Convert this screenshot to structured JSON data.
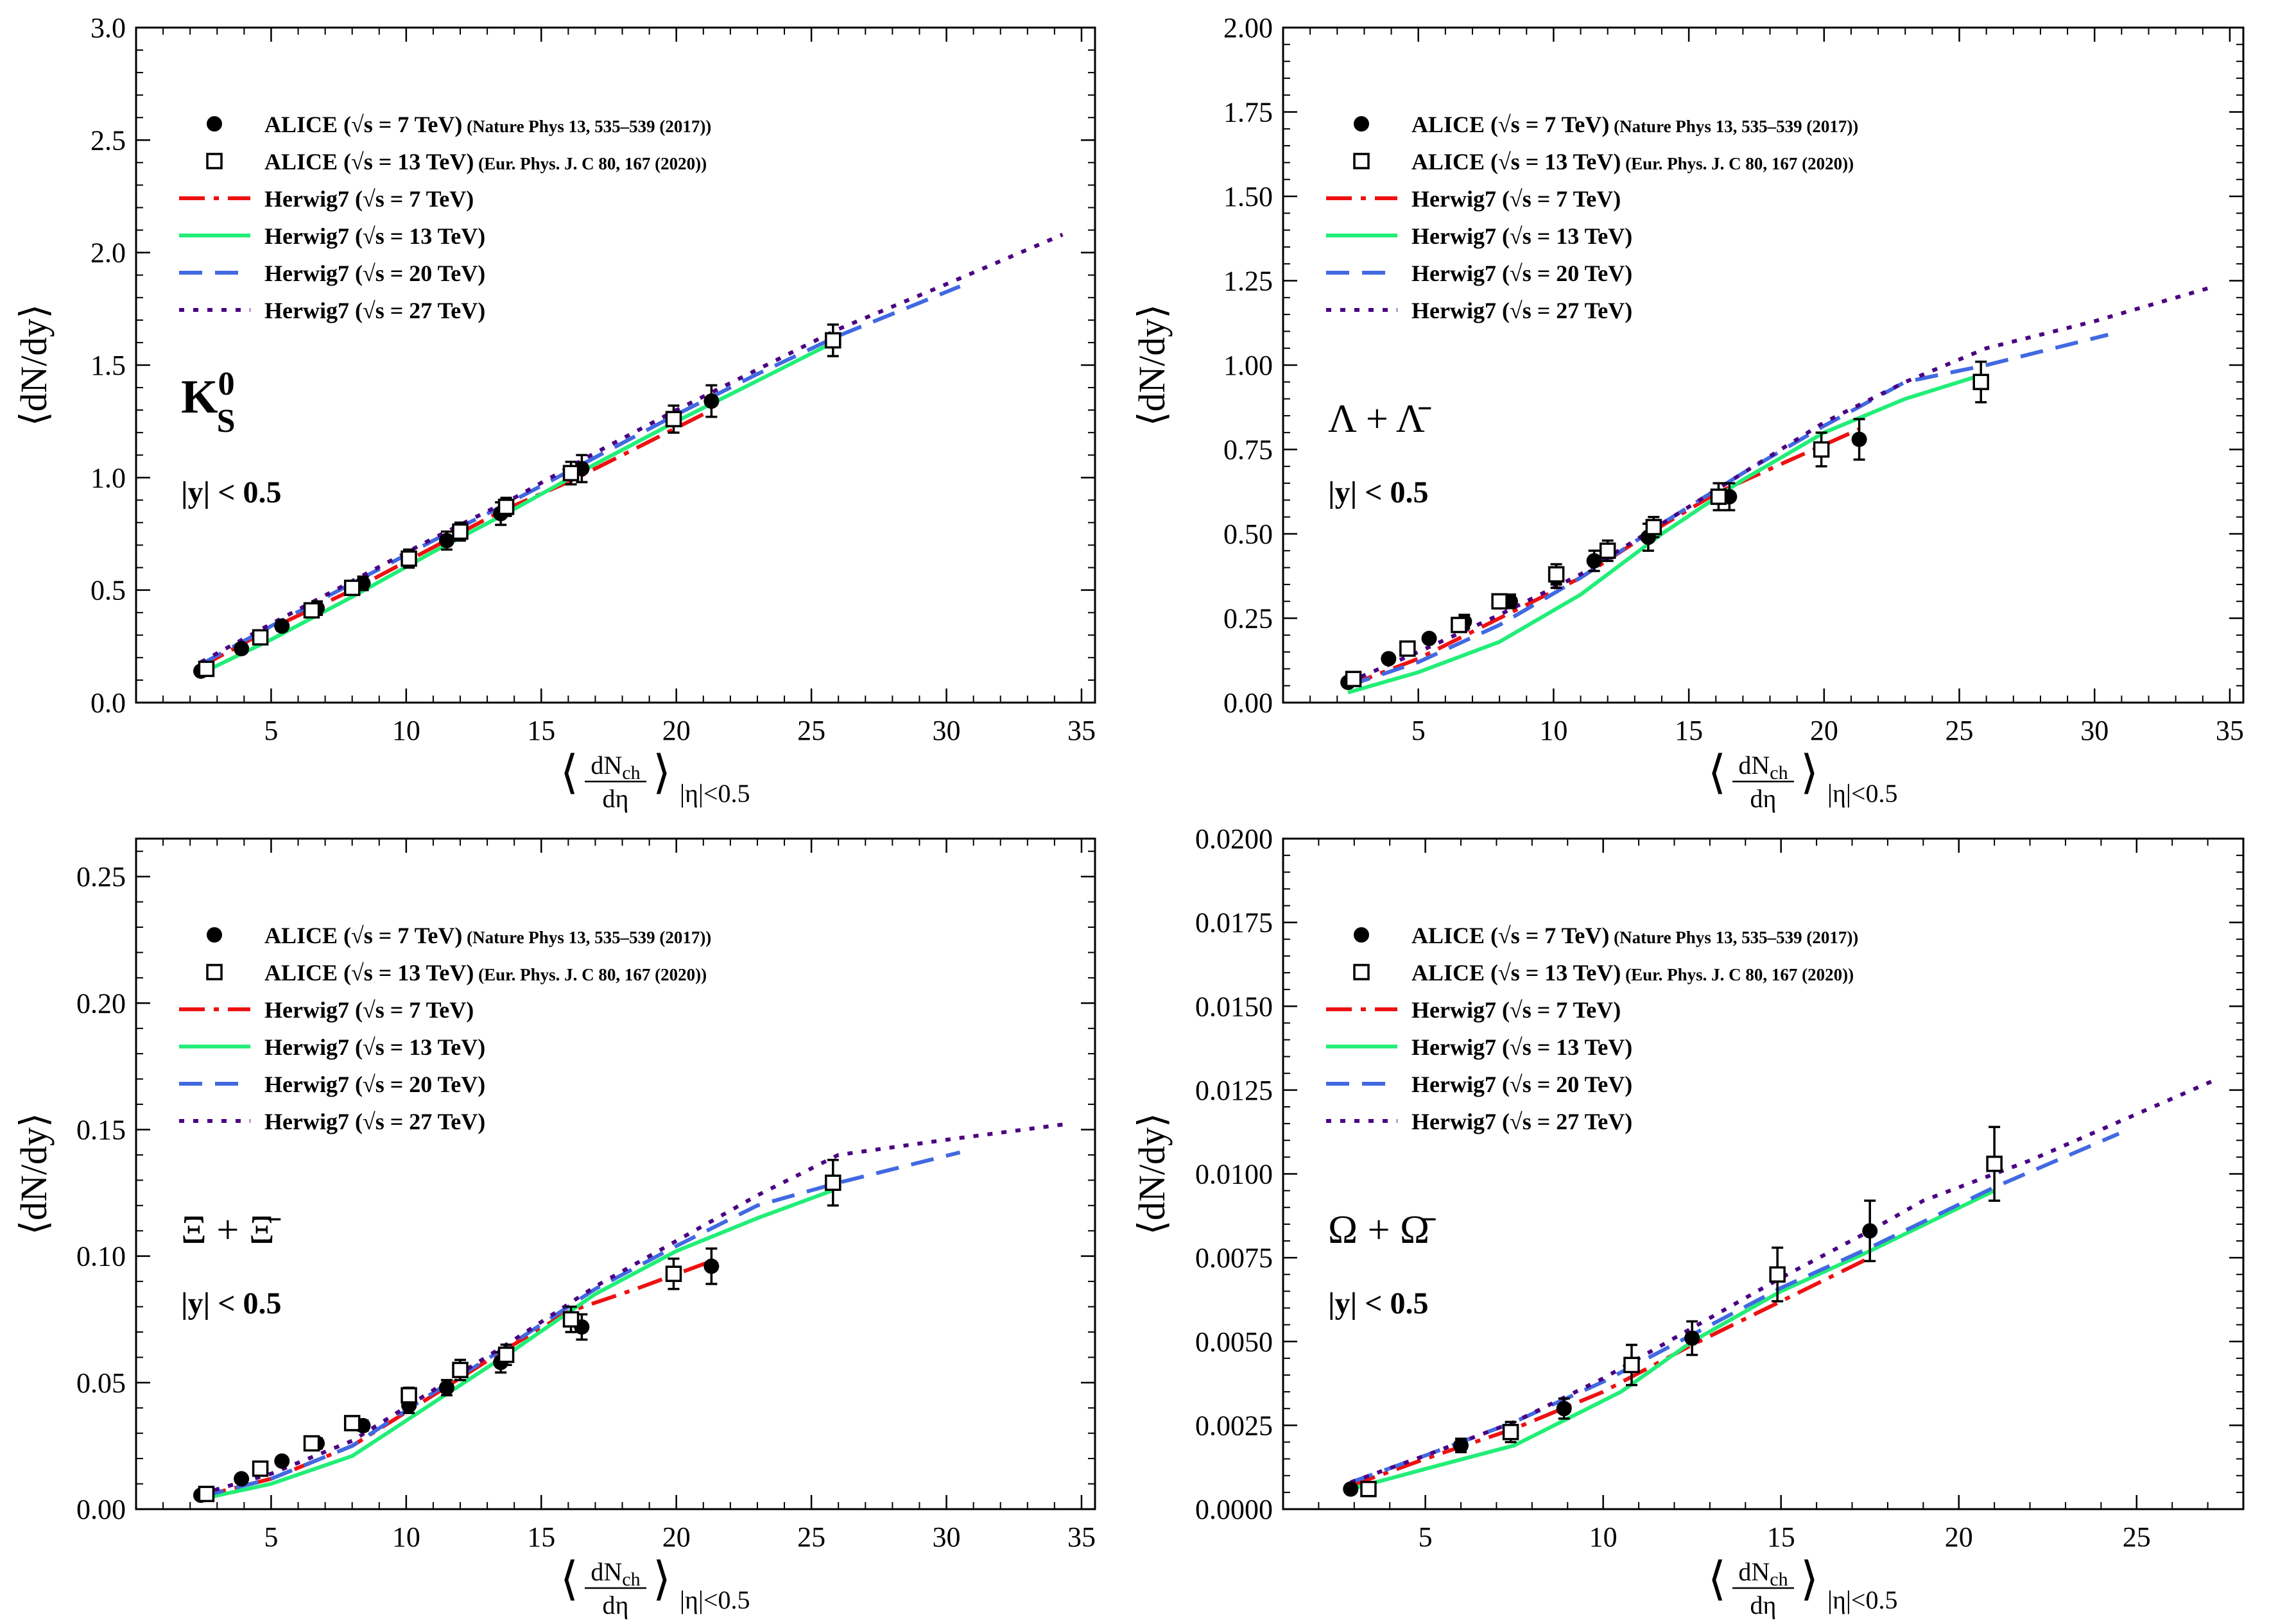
{
  "figure": {
    "xlabel_prefix": "⟨",
    "xlabel_frac_num": "dN",
    "xlabel_frac_num_sub": "ch",
    "xlabel_frac_den": "dη",
    "xlabel_suffix": "⟩",
    "xlabel_sub": "|η|<0.5",
    "ylabel": "⟨dN/dy⟩"
  },
  "legend": {
    "alice7": {
      "label": "ALICE (√s = 7 TeV)",
      "ref": "(Nature Phys 13, 535–539 (2017))"
    },
    "alice13": {
      "label": "ALICE (√s = 13 TeV)",
      "ref": "(Eur. Phys. J. C 80, 167 (2020))"
    },
    "herwig7": {
      "label": "Herwig7 (√s = 7 TeV)"
    },
    "herwig13": {
      "label": "Herwig7 (√s = 13 TeV)"
    },
    "herwig20": {
      "label": "Herwig7 (√s = 20 TeV)"
    },
    "herwig27": {
      "label": "Herwig7 (√s = 27 TeV)"
    }
  },
  "colors": {
    "alice7": "#000000",
    "alice13": "#000000",
    "herwig7": "#ee1111",
    "herwig13": "#22ee77",
    "herwig20": "#4169e1",
    "herwig27": "#4b0082"
  },
  "chart_data": [
    {
      "type": "line",
      "panel": "top-left",
      "particle": "K_S^0",
      "particle_main": "K",
      "particle_sup": "0",
      "particle_sub": "S",
      "cut": "|y| < 0.5",
      "xlim": [
        0,
        35.5
      ],
      "ylim": [
        0,
        3.0
      ],
      "xticks": [
        5,
        10,
        15,
        20,
        25,
        30,
        35
      ],
      "yticks": [
        0,
        0.5,
        1.0,
        1.5,
        2.0,
        2.5,
        3.0
      ],
      "ytick_labels": [
        "0.0",
        "0.5",
        "1.0",
        "1.5",
        "2.0",
        "2.5",
        "3.0"
      ],
      "series": [
        {
          "name": "ALICE 7 TeV",
          "kind": "points-filled",
          "x": [
            2.4,
            3.9,
            5.4,
            6.7,
            8.4,
            10.1,
            11.5,
            13.5,
            16.5,
            21.3
          ],
          "y": [
            0.14,
            0.24,
            0.34,
            0.42,
            0.53,
            0.64,
            0.72,
            0.84,
            1.04,
            1.34
          ],
          "err": [
            0.01,
            0.02,
            0.02,
            0.03,
            0.03,
            0.04,
            0.04,
            0.05,
            0.06,
            0.07
          ]
        },
        {
          "name": "ALICE 13 TeV",
          "kind": "points-open",
          "x": [
            2.6,
            4.6,
            6.5,
            8.0,
            10.1,
            12.0,
            13.7,
            16.1,
            19.9,
            25.8
          ],
          "y": [
            0.15,
            0.29,
            0.41,
            0.51,
            0.64,
            0.76,
            0.87,
            1.02,
            1.26,
            1.61
          ],
          "err": [
            0.01,
            0.02,
            0.02,
            0.03,
            0.03,
            0.04,
            0.04,
            0.05,
            0.06,
            0.07
          ]
        },
        {
          "name": "Herwig7 7 TeV",
          "kind": "dashdot",
          "x": [
            2.4,
            5.0,
            8.0,
            11.0,
            13.5,
            16.0,
            18.5,
            21.3
          ],
          "y": [
            0.16,
            0.33,
            0.5,
            0.69,
            0.85,
            0.98,
            1.13,
            1.3
          ]
        },
        {
          "name": "Herwig7 13 TeV",
          "kind": "solid",
          "x": [
            2.4,
            5.0,
            8.0,
            11.0,
            14.0,
            17.0,
            20.0,
            23.0,
            25.8
          ],
          "y": [
            0.13,
            0.28,
            0.47,
            0.67,
            0.86,
            1.06,
            1.25,
            1.43,
            1.6
          ]
        },
        {
          "name": "Herwig7 20 TeV",
          "kind": "dashed",
          "x": [
            2.4,
            5.0,
            8.0,
            11.0,
            14.0,
            17.0,
            20.0,
            23.0,
            26.0,
            30.5
          ],
          "y": [
            0.17,
            0.34,
            0.53,
            0.72,
            0.9,
            1.09,
            1.28,
            1.46,
            1.63,
            1.85
          ]
        },
        {
          "name": "Herwig7 27 TeV",
          "kind": "dotted",
          "x": [
            2.4,
            5.0,
            8.0,
            11.0,
            14.0,
            17.0,
            20.0,
            23.0,
            26.0,
            30.0,
            34.3
          ],
          "y": [
            0.18,
            0.35,
            0.54,
            0.73,
            0.91,
            1.11,
            1.3,
            1.48,
            1.66,
            1.86,
            2.08
          ]
        }
      ]
    },
    {
      "type": "line",
      "panel": "top-right",
      "particle": "Λ + Λ̄",
      "particle_main": "Λ + Λ̄",
      "particle_sup": "",
      "particle_sub": "",
      "cut": "|y| < 0.5",
      "xlim": [
        0,
        35.5
      ],
      "ylim": [
        0,
        2.0
      ],
      "xticks": [
        5,
        10,
        15,
        20,
        25,
        30,
        35
      ],
      "yticks": [
        0,
        0.25,
        0.5,
        0.75,
        1.0,
        1.25,
        1.5,
        1.75,
        2.0
      ],
      "ytick_labels": [
        "0.00",
        "0.25",
        "0.50",
        "0.75",
        "1.00",
        "1.25",
        "1.50",
        "1.75",
        "2.00"
      ],
      "series": [
        {
          "name": "ALICE 7 TeV",
          "kind": "points-filled",
          "x": [
            2.4,
            3.9,
            5.4,
            6.7,
            8.4,
            10.1,
            11.5,
            13.5,
            16.5,
            21.3
          ],
          "y": [
            0.06,
            0.13,
            0.19,
            0.24,
            0.3,
            0.37,
            0.42,
            0.49,
            0.61,
            0.78
          ],
          "err": [
            0.01,
            0.01,
            0.01,
            0.02,
            0.02,
            0.03,
            0.03,
            0.04,
            0.04,
            0.06
          ]
        },
        {
          "name": "ALICE 13 TeV",
          "kind": "points-open",
          "x": [
            2.6,
            4.6,
            6.5,
            8.0,
            10.1,
            12.0,
            13.7,
            16.1,
            19.9,
            25.8
          ],
          "y": [
            0.07,
            0.16,
            0.23,
            0.3,
            0.38,
            0.45,
            0.52,
            0.61,
            0.75,
            0.95
          ],
          "err": [
            0.01,
            0.01,
            0.02,
            0.02,
            0.03,
            0.03,
            0.03,
            0.04,
            0.05,
            0.06
          ]
        },
        {
          "name": "Herwig7 7 TeV",
          "kind": "dashdot",
          "x": [
            2.4,
            5.0,
            8.0,
            11.0,
            13.5,
            16.0,
            18.5,
            21.3
          ],
          "y": [
            0.05,
            0.13,
            0.25,
            0.37,
            0.5,
            0.62,
            0.71,
            0.81
          ]
        },
        {
          "name": "Herwig7 13 TeV",
          "kind": "solid",
          "x": [
            2.4,
            5.0,
            8.0,
            11.0,
            14.0,
            17.0,
            20.0,
            23.0,
            25.8
          ],
          "y": [
            0.03,
            0.09,
            0.18,
            0.32,
            0.5,
            0.66,
            0.8,
            0.9,
            0.97
          ]
        },
        {
          "name": "Herwig7 20 TeV",
          "kind": "dashed",
          "x": [
            2.4,
            5.0,
            8.0,
            11.0,
            14.0,
            17.0,
            20.0,
            23.0,
            26.0,
            30.5
          ],
          "y": [
            0.05,
            0.12,
            0.23,
            0.37,
            0.53,
            0.68,
            0.82,
            0.95,
            1.0,
            1.09
          ]
        },
        {
          "name": "Herwig7 27 TeV",
          "kind": "dotted",
          "x": [
            2.4,
            5.0,
            8.0,
            11.0,
            14.0,
            17.0,
            20.0,
            23.0,
            26.0,
            30.0,
            34.3
          ],
          "y": [
            0.06,
            0.15,
            0.26,
            0.38,
            0.53,
            0.68,
            0.83,
            0.95,
            1.05,
            1.13,
            1.23
          ]
        }
      ]
    },
    {
      "type": "line",
      "panel": "bottom-left",
      "particle": "Ξ + Ξ̄",
      "particle_main": "Ξ + Ξ̄",
      "particle_sup": "",
      "particle_sub": "",
      "cut": "|y| < 0.5",
      "xlim": [
        0,
        35.5
      ],
      "ylim": [
        0,
        0.265
      ],
      "xticks": [
        5,
        10,
        15,
        20,
        25,
        30,
        35
      ],
      "yticks": [
        0,
        0.05,
        0.1,
        0.15,
        0.2,
        0.25
      ],
      "ytick_labels": [
        "0.00",
        "0.05",
        "0.10",
        "0.15",
        "0.20",
        "0.25"
      ],
      "series": [
        {
          "name": "ALICE 7 TeV",
          "kind": "points-filled",
          "x": [
            2.4,
            3.9,
            5.4,
            6.7,
            8.4,
            10.1,
            11.5,
            13.5,
            16.5,
            21.3
          ],
          "y": [
            0.0055,
            0.012,
            0.019,
            0.026,
            0.033,
            0.041,
            0.048,
            0.058,
            0.072,
            0.096
          ],
          "err": [
            0.0005,
            0.001,
            0.0015,
            0.002,
            0.002,
            0.003,
            0.003,
            0.004,
            0.005,
            0.007
          ]
        },
        {
          "name": "ALICE 13 TeV",
          "kind": "points-open",
          "x": [
            2.6,
            4.6,
            6.5,
            8.0,
            10.1,
            12.0,
            13.7,
            16.1,
            19.9,
            25.8
          ],
          "y": [
            0.006,
            0.016,
            0.026,
            0.034,
            0.045,
            0.055,
            0.061,
            0.075,
            0.093,
            0.129
          ],
          "err": [
            0.0005,
            0.001,
            0.002,
            0.002,
            0.003,
            0.004,
            0.004,
            0.005,
            0.006,
            0.009
          ]
        },
        {
          "name": "Herwig7 7 TeV",
          "kind": "dashdot",
          "x": [
            2.4,
            5.0,
            8.0,
            11.0,
            13.5,
            16.0,
            18.5,
            21.3
          ],
          "y": [
            0.005,
            0.012,
            0.025,
            0.045,
            0.062,
            0.078,
            0.087,
            0.098
          ]
        },
        {
          "name": "Herwig7 13 TeV",
          "kind": "solid",
          "x": [
            2.4,
            5.0,
            8.0,
            11.0,
            14.0,
            17.0,
            20.0,
            23.0,
            25.8
          ],
          "y": [
            0.004,
            0.01,
            0.021,
            0.042,
            0.063,
            0.085,
            0.102,
            0.115,
            0.126
          ]
        },
        {
          "name": "Herwig7 20 TeV",
          "kind": "dashed",
          "x": [
            2.4,
            5.0,
            8.0,
            11.0,
            14.0,
            17.0,
            20.0,
            23.0,
            26.0,
            30.5
          ],
          "y": [
            0.005,
            0.012,
            0.025,
            0.046,
            0.066,
            0.087,
            0.104,
            0.12,
            0.129,
            0.141
          ]
        },
        {
          "name": "Herwig7 27 TeV",
          "kind": "dotted",
          "x": [
            2.4,
            5.0,
            8.0,
            11.0,
            14.0,
            17.0,
            20.0,
            23.0,
            26.0,
            30.0,
            34.3
          ],
          "y": [
            0.006,
            0.014,
            0.027,
            0.047,
            0.067,
            0.088,
            0.106,
            0.124,
            0.14,
            0.146,
            0.152
          ]
        }
      ]
    },
    {
      "type": "line",
      "panel": "bottom-right",
      "particle": "Ω + Ω̄",
      "particle_main": "Ω + Ω̄",
      "particle_sup": "",
      "particle_sub": "",
      "cut": "|y| < 0.5",
      "xlim": [
        1.0,
        28.0
      ],
      "ylim": [
        0,
        0.02
      ],
      "xticks": [
        5,
        10,
        15,
        20,
        25
      ],
      "yticks": [
        0,
        0.0025,
        0.005,
        0.0075,
        0.01,
        0.0125,
        0.015,
        0.0175,
        0.02
      ],
      "ytick_labels": [
        "0.0000",
        "0.0025",
        "0.0050",
        "0.0075",
        "0.0100",
        "0.0125",
        "0.0150",
        "0.0175",
        "0.0200"
      ],
      "series": [
        {
          "name": "ALICE 7 TeV",
          "kind": "points-filled",
          "x": [
            2.9,
            6.0,
            8.9,
            12.5,
            17.5
          ],
          "y": [
            0.0006,
            0.0019,
            0.003,
            0.0051,
            0.0083
          ],
          "err": [
            0.0001,
            0.0002,
            0.0003,
            0.0005,
            0.0009
          ]
        },
        {
          "name": "ALICE 13 TeV",
          "kind": "points-open",
          "x": [
            3.4,
            7.4,
            10.8,
            14.9,
            21.0
          ],
          "y": [
            0.0006,
            0.0023,
            0.0043,
            0.007,
            0.0103
          ],
          "err": [
            0.0001,
            0.0003,
            0.0006,
            0.0008,
            0.0011
          ]
        },
        {
          "name": "Herwig7 7 TeV",
          "kind": "dashdot",
          "x": [
            2.9,
            5.0,
            7.5,
            10.0,
            12.5,
            15.0,
            17.5
          ],
          "y": [
            0.0007,
            0.0015,
            0.0024,
            0.0035,
            0.0049,
            0.0062,
            0.0075
          ]
        },
        {
          "name": "Herwig7 13 TeV",
          "kind": "solid",
          "x": [
            2.9,
            5.0,
            7.5,
            10.5,
            12.5,
            15.0,
            17.5,
            21.0
          ],
          "y": [
            0.0006,
            0.0012,
            0.0019,
            0.0035,
            0.005,
            0.0065,
            0.0077,
            0.0095
          ]
        },
        {
          "name": "Herwig7 20 TeV",
          "kind": "dashed",
          "x": [
            2.9,
            5.0,
            7.5,
            10.0,
            12.5,
            15.0,
            17.5,
            21.0,
            24.5
          ],
          "y": [
            0.0008,
            0.0016,
            0.0026,
            0.0038,
            0.0052,
            0.0066,
            0.0078,
            0.0096,
            0.0112
          ]
        },
        {
          "name": "Herwig7 27 TeV",
          "kind": "dotted",
          "x": [
            2.9,
            5.0,
            7.5,
            10.0,
            12.5,
            15.0,
            17.5,
            19.0,
            22.0,
            27.2
          ],
          "y": [
            0.0008,
            0.0016,
            0.0026,
            0.0039,
            0.0054,
            0.0069,
            0.0083,
            0.0092,
            0.0104,
            0.0128
          ]
        }
      ]
    }
  ]
}
